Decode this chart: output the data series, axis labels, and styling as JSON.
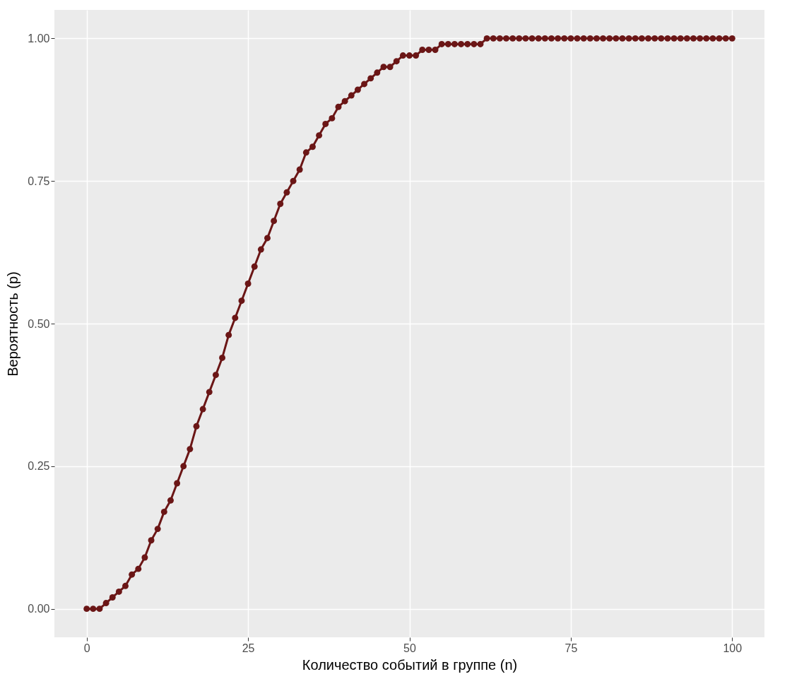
{
  "chart_data": {
    "type": "line",
    "xlabel": "Количество событий в группе (n)",
    "ylabel": "Вероятность (p)",
    "x": [
      0,
      1,
      2,
      3,
      4,
      5,
      6,
      7,
      8,
      9,
      10,
      11,
      12,
      13,
      14,
      15,
      16,
      17,
      18,
      19,
      20,
      21,
      22,
      23,
      24,
      25,
      26,
      27,
      28,
      29,
      30,
      31,
      32,
      33,
      34,
      35,
      36,
      37,
      38,
      39,
      40,
      41,
      42,
      43,
      44,
      45,
      46,
      47,
      48,
      49,
      50,
      51,
      52,
      53,
      54,
      55,
      56,
      57,
      58,
      59,
      60,
      61,
      62,
      63,
      64,
      65,
      66,
      67,
      68,
      69,
      70,
      71,
      72,
      73,
      74,
      75,
      76,
      77,
      78,
      79,
      80,
      81,
      82,
      83,
      84,
      85,
      86,
      87,
      88,
      89,
      90,
      91,
      92,
      93,
      94,
      95,
      96,
      97,
      98,
      99,
      100
    ],
    "series": [
      {
        "color": "#6b1616",
        "values": [
          0,
          0,
          0.0,
          0.01,
          0.02,
          0.03,
          0.04,
          0.06,
          0.07,
          0.09,
          0.12,
          0.14,
          0.17,
          0.19,
          0.22,
          0.25,
          0.28,
          0.32,
          0.35,
          0.38,
          0.41,
          0.44,
          0.48,
          0.51,
          0.54,
          0.57,
          0.6,
          0.63,
          0.65,
          0.68,
          0.71,
          0.73,
          0.75,
          0.77,
          0.8,
          0.81,
          0.83,
          0.85,
          0.86,
          0.88,
          0.89,
          0.9,
          0.91,
          0.92,
          0.93,
          0.94,
          0.95,
          0.95,
          0.96,
          0.97,
          0.97,
          0.97,
          0.98,
          0.98,
          0.98,
          0.99,
          0.99,
          0.99,
          0.99,
          0.99,
          0.99,
          0.99,
          1.0,
          1.0,
          1.0,
          1.0,
          1.0,
          1.0,
          1.0,
          1.0,
          1.0,
          1.0,
          1.0,
          1.0,
          1.0,
          1.0,
          1.0,
          1.0,
          1.0,
          1.0,
          1.0,
          1.0,
          1.0,
          1.0,
          1.0,
          1.0,
          1.0,
          1.0,
          1.0,
          1.0,
          1.0,
          1.0,
          1.0,
          1.0,
          1.0,
          1.0,
          1.0,
          1.0,
          1.0,
          1.0,
          1.0
        ]
      }
    ],
    "xlim": [
      -5,
      105
    ],
    "xticks": [
      0,
      25,
      50,
      75,
      100
    ],
    "ylim": [
      -0.05,
      1.05
    ],
    "yticks": [
      {
        "value": 0,
        "label": "0.00"
      },
      {
        "value": 0.25,
        "label": "0.25"
      },
      {
        "value": 0.5,
        "label": "0.50"
      },
      {
        "value": 0.75,
        "label": "0.75"
      },
      {
        "value": 1,
        "label": "1.00"
      }
    ],
    "grid": true,
    "marker": "circle",
    "line_style": "solid"
  }
}
